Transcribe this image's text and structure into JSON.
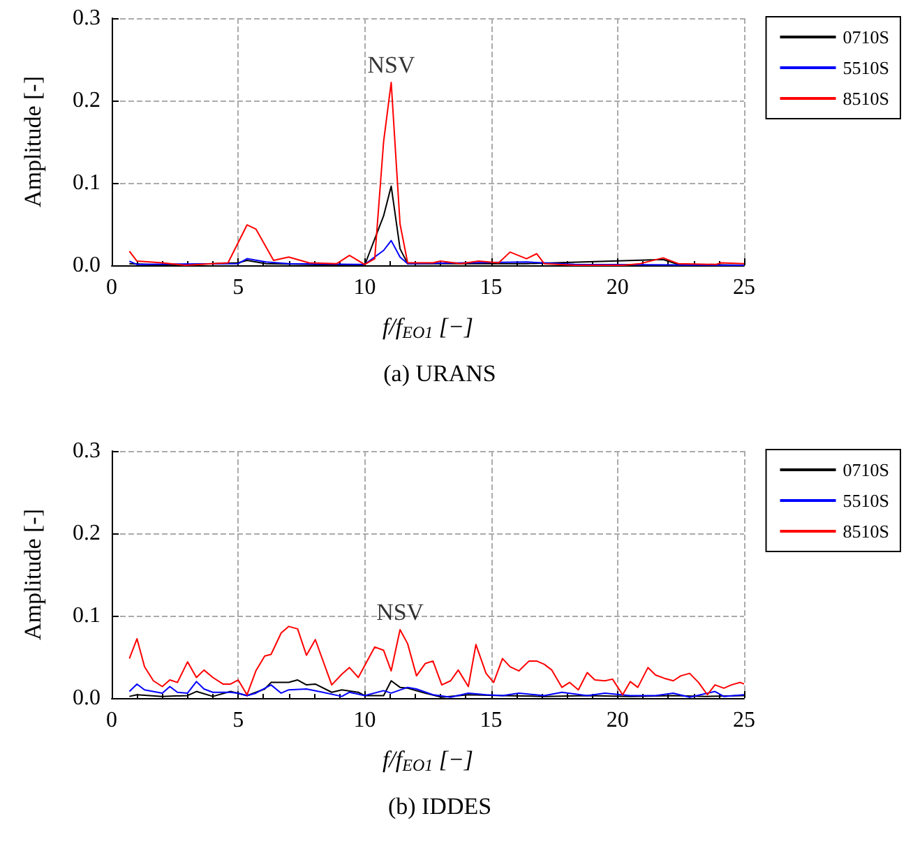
{
  "chart_data": [
    {
      "type": "line",
      "title": "(a) URANS",
      "xlabel": "f/f$_{EO1}$ [−]",
      "ylabel": "Amplitude [-]",
      "xlim": [
        0,
        25
      ],
      "xticks": [
        0,
        5,
        10,
        15,
        20,
        25
      ],
      "ylim": [
        0,
        0.3
      ],
      "yticks": [
        {
          "value": 0,
          "label": "0.0"
        },
        {
          "value": 0.1,
          "label": "0.1"
        },
        {
          "value": 0.2,
          "label": "0.2"
        },
        {
          "value": 0.3,
          "label": "0.3"
        }
      ],
      "grid": true,
      "legend": "right",
      "line_style": "solid",
      "annotations": [
        "NSV"
      ],
      "series": [
        {
          "name": "0710S",
          "color": "#000000",
          "x": [
            0.7,
            2.3,
            5.0,
            5.35,
            6.1,
            10.0,
            10.75,
            11.05,
            11.4,
            11.7,
            16.4,
            21.8,
            22.4,
            25
          ],
          "values": [
            0.002,
            0,
            0.003,
            0.006,
            0.002,
            0,
            0.06,
            0.096,
            0.02,
            0.002,
            0.002,
            0.007,
            0.001,
            0
          ]
        },
        {
          "name": "5510S",
          "color": "#0000ff",
          "x": [
            0.7,
            1.0,
            5.0,
            5.35,
            6.1,
            7.0,
            10.0,
            10.75,
            11.05,
            11.4,
            11.7,
            16.4,
            18.3,
            25
          ],
          "values": [
            0.005,
            0.001,
            0.002,
            0.008,
            0.004,
            0.002,
            0.001,
            0.018,
            0.03,
            0.01,
            0.002,
            0.004,
            0.001,
            0
          ]
        },
        {
          "name": "8510S",
          "color": "#ff0000",
          "x": [
            0.7,
            1.0,
            2.0,
            2.9,
            4.6,
            5.35,
            5.7,
            6.4,
            7.0,
            7.8,
            8.9,
            9.4,
            10.0,
            10.4,
            10.75,
            11.05,
            11.4,
            11.7,
            12.7,
            13.0,
            13.8,
            14.5,
            15.3,
            15.75,
            16.4,
            16.8,
            17.1,
            18.3,
            20.2,
            20.9,
            21.8,
            22.4,
            23.9,
            24.1,
            25
          ],
          "values": [
            0.017,
            0.005,
            0.003,
            0,
            0.003,
            0.049,
            0.044,
            0.006,
            0.01,
            0.003,
            0.002,
            0.012,
            0.001,
            0.008,
            0.15,
            0.222,
            0.05,
            0.003,
            0.003,
            0.005,
            0.002,
            0.005,
            0.003,
            0.016,
            0.008,
            0.014,
            0.002,
            0,
            0,
            0.002,
            0.009,
            0.002,
            0.001,
            0.003,
            0.002
          ]
        }
      ]
    },
    {
      "type": "line",
      "title": "(b) IDDES",
      "xlabel": "f/f$_{EO1}$ [−]",
      "ylabel": "Amplitude [-]",
      "xlim": [
        0,
        25
      ],
      "xticks": [
        0,
        5,
        10,
        15,
        20,
        25
      ],
      "ylim": [
        0,
        0.3
      ],
      "yticks": [
        {
          "value": 0,
          "label": "0.0"
        },
        {
          "value": 0.1,
          "label": "0.1"
        },
        {
          "value": 0.2,
          "label": "0.2"
        },
        {
          "value": 0.3,
          "label": "0.3"
        }
      ],
      "grid": true,
      "legend": "right",
      "line_style": "solid",
      "annotations": [
        "NSV"
      ],
      "series": [
        {
          "name": "0710S",
          "color": "#000000",
          "x": [
            0.7,
            1.0,
            2.0,
            3.0,
            3.35,
            4.0,
            4.7,
            5.35,
            6.05,
            6.3,
            7.0,
            7.35,
            7.7,
            8.05,
            8.7,
            9.1,
            9.75,
            10.0,
            10.75,
            11.05,
            11.4,
            11.7,
            12.4,
            13.05,
            14.1,
            15.45,
            17.1,
            18.8,
            20.5,
            22.2,
            23.55,
            25
          ],
          "values": [
            0.002,
            0.004,
            0.002,
            0.003,
            0.008,
            0.002,
            0.008,
            0.003,
            0.011,
            0.019,
            0.019,
            0.022,
            0.016,
            0.017,
            0.007,
            0.01,
            0.007,
            0.003,
            0.003,
            0.021,
            0.013,
            0.012,
            0.006,
            0.001,
            0.004,
            0.003,
            0.002,
            0.003,
            0.002,
            0.003,
            0.002,
            0.003
          ]
        },
        {
          "name": "5510S",
          "color": "#0000ff",
          "x": [
            0.7,
            1.0,
            1.3,
            2.0,
            2.3,
            2.6,
            3.0,
            3.35,
            3.65,
            4.0,
            4.7,
            5.0,
            5.35,
            5.7,
            6.3,
            6.7,
            7.0,
            7.7,
            8.35,
            9.1,
            9.4,
            10.0,
            10.75,
            11.05,
            11.7,
            12.05,
            12.7,
            13.4,
            14.1,
            14.8,
            15.45,
            16.1,
            17.1,
            17.8,
            18.8,
            19.5,
            20.5,
            21.5,
            22.2,
            22.85,
            23.85,
            24.2,
            25
          ],
          "values": [
            0.008,
            0.017,
            0.01,
            0.006,
            0.014,
            0.007,
            0.006,
            0.02,
            0.011,
            0.007,
            0.007,
            0.006,
            0.003,
            0.006,
            0.016,
            0.006,
            0.01,
            0.011,
            0.007,
            0.002,
            0.007,
            0.003,
            0.009,
            0.006,
            0.013,
            0.011,
            0.004,
            0.001,
            0.006,
            0.004,
            0.003,
            0.006,
            0.003,
            0.007,
            0.003,
            0.006,
            0.003,
            0.003,
            0.006,
            0.001,
            0.008,
            0.002,
            0.004
          ]
        },
        {
          "name": "8510S",
          "color": "#ff0000",
          "x": [
            0.7,
            1.0,
            1.3,
            1.65,
            2.0,
            2.3,
            2.6,
            3.0,
            3.35,
            3.65,
            4.0,
            4.4,
            4.7,
            5.0,
            5.35,
            5.7,
            6.05,
            6.3,
            6.7,
            7.0,
            7.35,
            7.7,
            8.05,
            8.7,
            9.1,
            9.4,
            9.75,
            10.4,
            10.75,
            11.05,
            11.4,
            11.7,
            12.05,
            12.4,
            12.7,
            13.05,
            13.4,
            13.7,
            14.1,
            14.4,
            14.8,
            15.1,
            15.45,
            15.75,
            16.1,
            16.5,
            16.8,
            17.1,
            17.4,
            17.8,
            18.1,
            18.45,
            18.8,
            19.1,
            19.5,
            19.8,
            20.2,
            20.5,
            20.8,
            21.2,
            21.5,
            21.85,
            22.2,
            22.5,
            22.85,
            23.2,
            23.55,
            23.85,
            24.2,
            24.5,
            24.85,
            25
          ],
          "values": [
            0.048,
            0.072,
            0.038,
            0.021,
            0.014,
            0.022,
            0.019,
            0.044,
            0.025,
            0.034,
            0.025,
            0.017,
            0.017,
            0.022,
            0.004,
            0.033,
            0.051,
            0.053,
            0.079,
            0.087,
            0.084,
            0.052,
            0.071,
            0.016,
            0.029,
            0.037,
            0.025,
            0.062,
            0.058,
            0.033,
            0.083,
            0.066,
            0.027,
            0.042,
            0.045,
            0.016,
            0.021,
            0.034,
            0.014,
            0.065,
            0.03,
            0.019,
            0.048,
            0.038,
            0.033,
            0.045,
            0.045,
            0.041,
            0.034,
            0.013,
            0.019,
            0.01,
            0.031,
            0.022,
            0.021,
            0.023,
            0.004,
            0.02,
            0.013,
            0.037,
            0.028,
            0.024,
            0.021,
            0.027,
            0.03,
            0.019,
            0.004,
            0.016,
            0.012,
            0.016,
            0.019,
            0.017
          ]
        }
      ]
    }
  ]
}
